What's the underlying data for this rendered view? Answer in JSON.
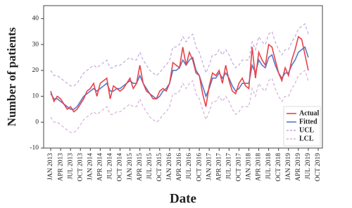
{
  "chart_data": {
    "type": "line",
    "x_label": "Date",
    "y_label": "Number of patients",
    "categories": [
      "JAN 2013",
      null,
      null,
      "APR 2013",
      null,
      null,
      "JUL 2013",
      null,
      null,
      "OCT 2013",
      null,
      null,
      "JAN 2014",
      null,
      null,
      "APR 2014",
      null,
      null,
      "JUL 2014",
      null,
      null,
      "OCT 2014",
      null,
      null,
      "JAN 2015",
      null,
      null,
      "APR 2015",
      null,
      null,
      "JUL 2015",
      null,
      null,
      "OCT 2015",
      null,
      null,
      "JAN 2016",
      null,
      null,
      "APR 2016",
      null,
      null,
      "JUL 2016",
      null,
      null,
      "OCT 2016",
      null,
      null,
      "JAN 2017",
      null,
      null,
      "APR 2017",
      null,
      null,
      "JUL 2017",
      null,
      null,
      "OCT 2017",
      null,
      null,
      "JAN 2018",
      null,
      null,
      "APR 2018",
      null,
      null,
      "JUL 2018",
      null,
      null,
      "OCT 2018",
      null,
      null,
      "JAN 2019",
      null,
      null,
      "APR 2019",
      null,
      null,
      "JUL 2019",
      null,
      null,
      "OCT 2019"
    ],
    "ylim": [
      -10,
      45
    ],
    "yticks": [
      -10,
      0,
      10,
      20,
      30,
      40
    ],
    "legend": "lower right",
    "series": [
      {
        "name": "Actual",
        "color": "#e8434a",
        "dash": false,
        "values": [
          12,
          8,
          10,
          9,
          7,
          5,
          6,
          4,
          5,
          7,
          9,
          12,
          13,
          15,
          10,
          15,
          16,
          17,
          9,
          14,
          13,
          12,
          13,
          15,
          17,
          13,
          15,
          22,
          15,
          12,
          11,
          9,
          9,
          12,
          13,
          12,
          15,
          23,
          22,
          21,
          29,
          22,
          27,
          24,
          19,
          18,
          11,
          6,
          14,
          19,
          18,
          20,
          15,
          22,
          16,
          12,
          11,
          15,
          17,
          14,
          13,
          29,
          17,
          27,
          24,
          22,
          30,
          29,
          24,
          19,
          16,
          21,
          18,
          24,
          28,
          33,
          32,
          26,
          20,
          null,
          null,
          null
        ]
      },
      {
        "name": "Fitted",
        "color": "#5a78c8",
        "dash": false,
        "values": [
          11,
          9,
          9,
          8,
          7,
          6,
          5,
          5,
          6,
          8,
          10,
          11,
          12,
          13,
          12,
          13,
          14,
          15,
          12,
          12,
          13,
          13,
          14,
          15,
          16,
          15,
          15,
          18,
          15,
          13,
          11,
          10,
          9,
          10,
          12,
          13,
          15,
          20,
          20,
          21,
          24,
          22,
          24,
          25,
          20,
          18,
          14,
          10,
          13,
          17,
          17,
          19,
          17,
          19,
          17,
          14,
          12,
          13,
          15,
          15,
          15,
          22,
          19,
          24,
          22,
          21,
          25,
          26,
          22,
          19,
          17,
          19,
          19,
          22,
          24,
          27,
          28,
          29,
          25,
          null,
          null,
          null
        ]
      },
      {
        "name": "UCL",
        "color": "#c3a8e0",
        "dash": true,
        "values": [
          20,
          18,
          18,
          17,
          16,
          15,
          14,
          14,
          15,
          17,
          19,
          20,
          21,
          22,
          21,
          22,
          23,
          24,
          21,
          21,
          22,
          22,
          23,
          24,
          25,
          24,
          24,
          27,
          24,
          22,
          20,
          19,
          18,
          19,
          21,
          22,
          24,
          29,
          29,
          30,
          33,
          31,
          33,
          34,
          29,
          27,
          23,
          19,
          22,
          26,
          26,
          28,
          26,
          28,
          26,
          23,
          21,
          22,
          24,
          24,
          24,
          31,
          28,
          33,
          31,
          30,
          34,
          35,
          31,
          28,
          26,
          28,
          28,
          31,
          33,
          36,
          37,
          38,
          34,
          null,
          null,
          null
        ]
      },
      {
        "name": "LCL",
        "color": "#d6b0d8",
        "dash": true,
        "values": [
          2,
          0,
          0,
          -1,
          -2,
          -3,
          -4,
          -4,
          -3,
          -1,
          1,
          2,
          3,
          4,
          3,
          4,
          5,
          6,
          3,
          3,
          4,
          4,
          5,
          6,
          7,
          6,
          6,
          9,
          6,
          4,
          2,
          1,
          0,
          1,
          3,
          4,
          6,
          11,
          11,
          12,
          15,
          13,
          15,
          16,
          11,
          9,
          5,
          1,
          4,
          8,
          8,
          10,
          8,
          10,
          8,
          5,
          3,
          4,
          6,
          6,
          6,
          13,
          10,
          15,
          13,
          12,
          16,
          17,
          13,
          10,
          8,
          10,
          10,
          13,
          15,
          18,
          19,
          20,
          16,
          null,
          null,
          null
        ]
      }
    ]
  }
}
